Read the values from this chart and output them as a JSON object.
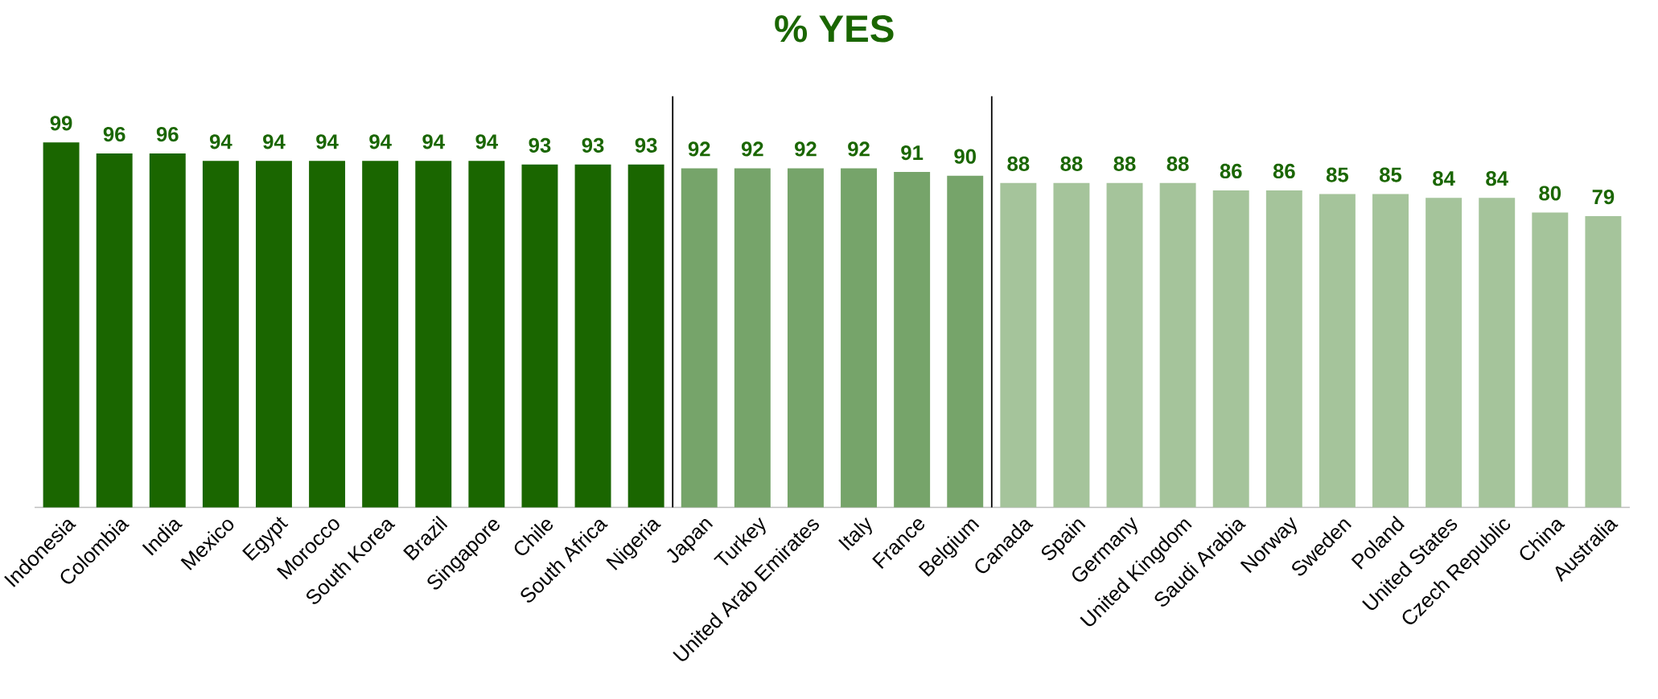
{
  "chart_data": {
    "type": "bar",
    "title": "% YES",
    "categories": [
      "Indonesia",
      "Colombia",
      "India",
      "Mexico",
      "Egypt",
      "Morocco",
      "South Korea",
      "Brazil",
      "Singapore",
      "Chile",
      "South Africa",
      "Nigeria",
      "Japan",
      "Turkey",
      "United Arab Emirates",
      "Italy",
      "France",
      "Belgium",
      "Canada",
      "Spain",
      "Germany",
      "United Kingdom",
      "Saudi Arabia",
      "Norway",
      "Sweden",
      "Poland",
      "United States",
      "Czech Republic",
      "China",
      "Australia"
    ],
    "values": [
      99,
      96,
      96,
      94,
      94,
      94,
      94,
      94,
      94,
      93,
      93,
      93,
      92,
      92,
      92,
      92,
      91,
      90,
      88,
      88,
      88,
      88,
      86,
      86,
      85,
      85,
      84,
      84,
      80,
      79
    ],
    "colors": [
      "#1a6600",
      "#1a6600",
      "#1a6600",
      "#1a6600",
      "#1a6600",
      "#1a6600",
      "#1a6600",
      "#1a6600",
      "#1a6600",
      "#1a6600",
      "#1a6600",
      "#1a6600",
      "#76a46a",
      "#76a46a",
      "#76a46a",
      "#76a46a",
      "#76a46a",
      "#76a46a",
      "#a5c49b",
      "#a5c49b",
      "#a5c49b",
      "#a5c49b",
      "#a5c49b",
      "#a5c49b",
      "#a5c49b",
      "#a5c49b",
      "#a5c49b",
      "#a5c49b",
      "#a5c49b",
      "#a5c49b"
    ],
    "data_labels": true
  }
}
